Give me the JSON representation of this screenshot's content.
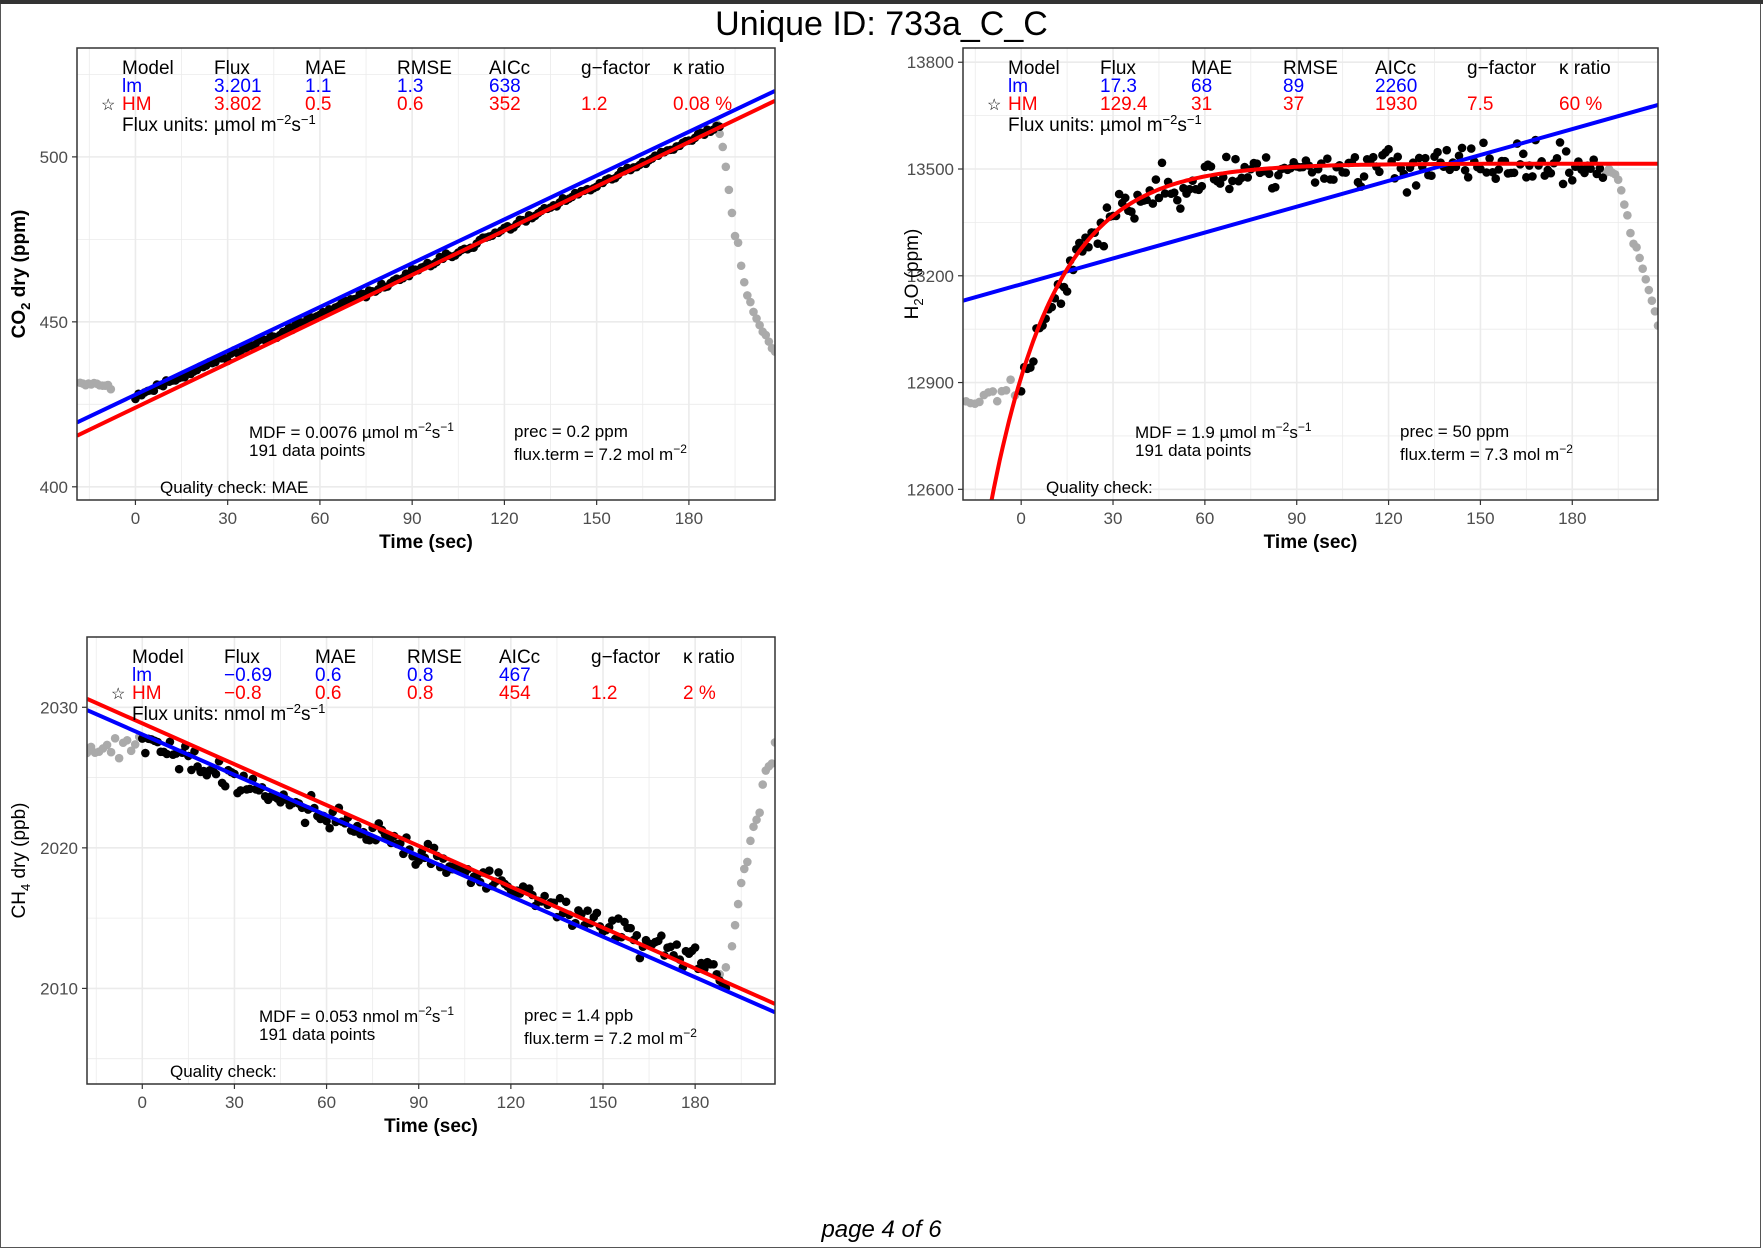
{
  "page": {
    "title": "Unique ID: 733a_C_C",
    "footer": "page 4 of 6"
  },
  "colors": {
    "lm": "#0000ff",
    "hm": "#ff0000",
    "points": "#000000",
    "excluded": "#aaaaaa",
    "grid": "#ebebeb"
  },
  "legend_header": [
    "Model",
    "Flux",
    "MAE",
    "RMSE",
    "AICc",
    "g−factor",
    "κ ratio"
  ],
  "chart_data": [
    {
      "type": "scatter",
      "ylabel_main": "CO",
      "ylabel_sub": "2",
      "ylabel_rest": " dry (ppm)",
      "ylabel_bold": true,
      "xlabel": "Time (sec)",
      "xlim": [
        -19,
        208
      ],
      "ylim": [
        396,
        533
      ],
      "xticks": [
        0,
        30,
        60,
        90,
        120,
        150,
        180
      ],
      "yticks": [
        400,
        450,
        500
      ],
      "grid": true,
      "legend_position": "top-left",
      "lm_row": {
        "model": "lm",
        "flux": "3.201",
        "mae": "1.1",
        "rmse": "1.3",
        "aicc": "638",
        "gfactor": "",
        "kratio": ""
      },
      "hm_row": {
        "star": "☆",
        "model": "HM",
        "flux": "3.802",
        "mae": "0.5",
        "rmse": "0.6",
        "aicc": "352",
        "gfactor": "1.2",
        "kratio": "0.08 %"
      },
      "flux_units_prefix": "Flux units: µmol m",
      "flux_units_exp1": "−2",
      "flux_units_mid": "s",
      "flux_units_exp2": "−1",
      "mdf_prefix": "MDF = 0.0076 µmol m",
      "mdf_exp1": "−2",
      "mdf_mid": "s",
      "mdf_exp2": "−1",
      "n_points": "191 data points",
      "prec": "prec = 0.2 ppm",
      "fluxterm_prefix": "flux.term = 7.2 mol m",
      "fluxterm_exp": "−2",
      "quality": "Quality check:  MAE",
      "excluded_before": {
        "x": [
          -18,
          -8
        ],
        "y": [
          431.5,
          430.5
        ],
        "n": 12,
        "noise": 0.5
      },
      "excluded_after": [
        [
          189,
          510
        ],
        [
          190,
          507
        ],
        [
          191,
          503
        ],
        [
          192,
          497
        ],
        [
          193,
          490
        ],
        [
          194,
          483
        ],
        [
          195,
          476
        ],
        [
          196,
          474
        ],
        [
          197,
          467
        ],
        [
          198,
          462
        ],
        [
          199,
          458
        ],
        [
          200,
          456
        ],
        [
          201,
          453
        ],
        [
          202,
          451
        ],
        [
          203,
          449
        ],
        [
          204,
          447
        ],
        [
          205,
          446
        ],
        [
          206,
          444
        ],
        [
          207,
          442
        ],
        [
          208,
          441
        ]
      ],
      "measured": {
        "type": "linear",
        "x0": 0,
        "y0": 427.5,
        "y_end": 509.5,
        "curve": -6,
        "n": 191,
        "noise": 0.7,
        "seed": 11
      },
      "lm_line": {
        "type": "linear",
        "x": [
          -19,
          208
        ],
        "y": [
          419.5,
          520
        ]
      },
      "hm_line": {
        "type": "linear",
        "x": [
          -19,
          208
        ],
        "y": [
          415.5,
          517
        ]
      }
    },
    {
      "type": "scatter",
      "ylabel_main": "H",
      "ylabel_sub": "2",
      "ylabel_rest": "O (ppm)",
      "ylabel_bold": false,
      "xlabel": "Time (sec)",
      "xlim": [
        -19,
        208
      ],
      "ylim": [
        12570,
        13840
      ],
      "xticks": [
        0,
        30,
        60,
        90,
        120,
        150,
        180
      ],
      "yticks": [
        12600,
        12900,
        13200,
        13500,
        13800
      ],
      "grid": true,
      "legend_position": "top-left",
      "lm_row": {
        "model": "lm",
        "flux": "17.3",
        "mae": "68",
        "rmse": "89",
        "aicc": "2260",
        "gfactor": "",
        "kratio": ""
      },
      "hm_row": {
        "star": "☆",
        "model": "HM",
        "flux": "129.4",
        "mae": "31",
        "rmse": "37",
        "aicc": "1930",
        "gfactor": "7.5",
        "kratio": "60 %"
      },
      "flux_units_prefix": "Flux units: µmol m",
      "flux_units_exp1": "−2",
      "flux_units_mid": "s",
      "flux_units_exp2": "−1",
      "mdf_prefix": "MDF = 1.9 µmol m",
      "mdf_exp1": "−2",
      "mdf_mid": "s",
      "mdf_exp2": "−1",
      "n_points": "191 data points",
      "prec": "prec = 50 ppm",
      "fluxterm_prefix": "flux.term = 7.3 mol m",
      "fluxterm_exp": "−2",
      "quality": "Quality check:",
      "excluded_before": {
        "x": [
          -18,
          -2
        ],
        "y": [
          12850,
          12880
        ],
        "n": 12,
        "noise": 25
      },
      "excluded_after": [
        [
          191,
          13490
        ],
        [
          192,
          13500
        ],
        [
          193,
          13490
        ],
        [
          194,
          13485
        ],
        [
          195,
          13470
        ],
        [
          196,
          13440
        ],
        [
          197,
          13400
        ],
        [
          198,
          13370
        ],
        [
          199,
          13320
        ],
        [
          200,
          13290
        ],
        [
          201,
          13280
        ],
        [
          202,
          13250
        ],
        [
          203,
          13220
        ],
        [
          204,
          13190
        ],
        [
          205,
          13160
        ],
        [
          206,
          13130
        ],
        [
          207,
          13100
        ],
        [
          208,
          13060
        ]
      ],
      "measured": {
        "type": "exp",
        "a": 13510,
        "b": -620,
        "k": 0.048,
        "n": 191,
        "noise": 40,
        "seed": 23
      },
      "lm_line": {
        "type": "linear",
        "x": [
          -19,
          208
        ],
        "y": [
          13130,
          13680
        ]
      },
      "hm_line": {
        "type": "exp",
        "a": 13515,
        "b": -600,
        "k": 0.047,
        "xstart": -19
      }
    },
    {
      "type": "scatter",
      "ylabel_main": "CH",
      "ylabel_sub": "4",
      "ylabel_rest": " dry (ppb)",
      "ylabel_bold": false,
      "xlabel": "Time (sec)",
      "xlim": [
        -18,
        206
      ],
      "ylim": [
        2003.2,
        2035
      ],
      "xticks": [
        0,
        30,
        60,
        90,
        120,
        150,
        180
      ],
      "yticks": [
        2010,
        2020,
        2030
      ],
      "grid": true,
      "legend_position": "top-left",
      "lm_row": {
        "model": "lm",
        "flux": "−0.69",
        "mae": "0.6",
        "rmse": "0.8",
        "aicc": "467",
        "gfactor": "",
        "kratio": ""
      },
      "hm_row": {
        "star": "☆",
        "model": "HM",
        "flux": "−0.8",
        "mae": "0.6",
        "rmse": "0.8",
        "aicc": "454",
        "gfactor": "1.2",
        "kratio": "2 %"
      },
      "flux_units_prefix": "Flux units: nmol m",
      "flux_units_exp1": "−2",
      "flux_units_mid": "s",
      "flux_units_exp2": "−1",
      "mdf_prefix": "MDF = 0.053 nmol m",
      "mdf_exp1": "−2",
      "mdf_mid": "s",
      "mdf_exp2": "−1",
      "n_points": "191 data points",
      "prec": "prec = 1.4 ppb",
      "fluxterm_prefix": "flux.term = 7.2 mol m",
      "fluxterm_exp": "−2",
      "quality": "Quality check:",
      "excluded_before": {
        "x": [
          -18,
          -1
        ],
        "y": [
          2027.5,
          2027.2
        ],
        "n": 14,
        "noise": 0.5
      },
      "excluded_after": [
        [
          188,
          2011
        ],
        [
          190,
          2011.5
        ],
        [
          192,
          2013
        ],
        [
          193,
          2014.5
        ],
        [
          194,
          2016
        ],
        [
          195,
          2017.5
        ],
        [
          196,
          2018.5
        ],
        [
          197,
          2019
        ],
        [
          198,
          2020.5
        ],
        [
          199,
          2021.5
        ],
        [
          200,
          2022
        ],
        [
          201,
          2022.5
        ],
        [
          202,
          2024.5
        ],
        [
          203,
          2025.5
        ],
        [
          204,
          2025.8
        ],
        [
          205,
          2026
        ],
        [
          206,
          2027.5
        ]
      ],
      "measured": {
        "type": "linear",
        "x0": 0,
        "y0": 2027.5,
        "y_end": 2011,
        "curve": 0,
        "n": 191,
        "noise": 0.7,
        "seed": 41
      },
      "lm_line": {
        "type": "linear",
        "x": [
          -18,
          206
        ],
        "y": [
          2029.8,
          2008.3
        ]
      },
      "hm_line": {
        "type": "linear",
        "x": [
          -18,
          206
        ],
        "y": [
          2030.6,
          2008.9
        ]
      }
    }
  ]
}
